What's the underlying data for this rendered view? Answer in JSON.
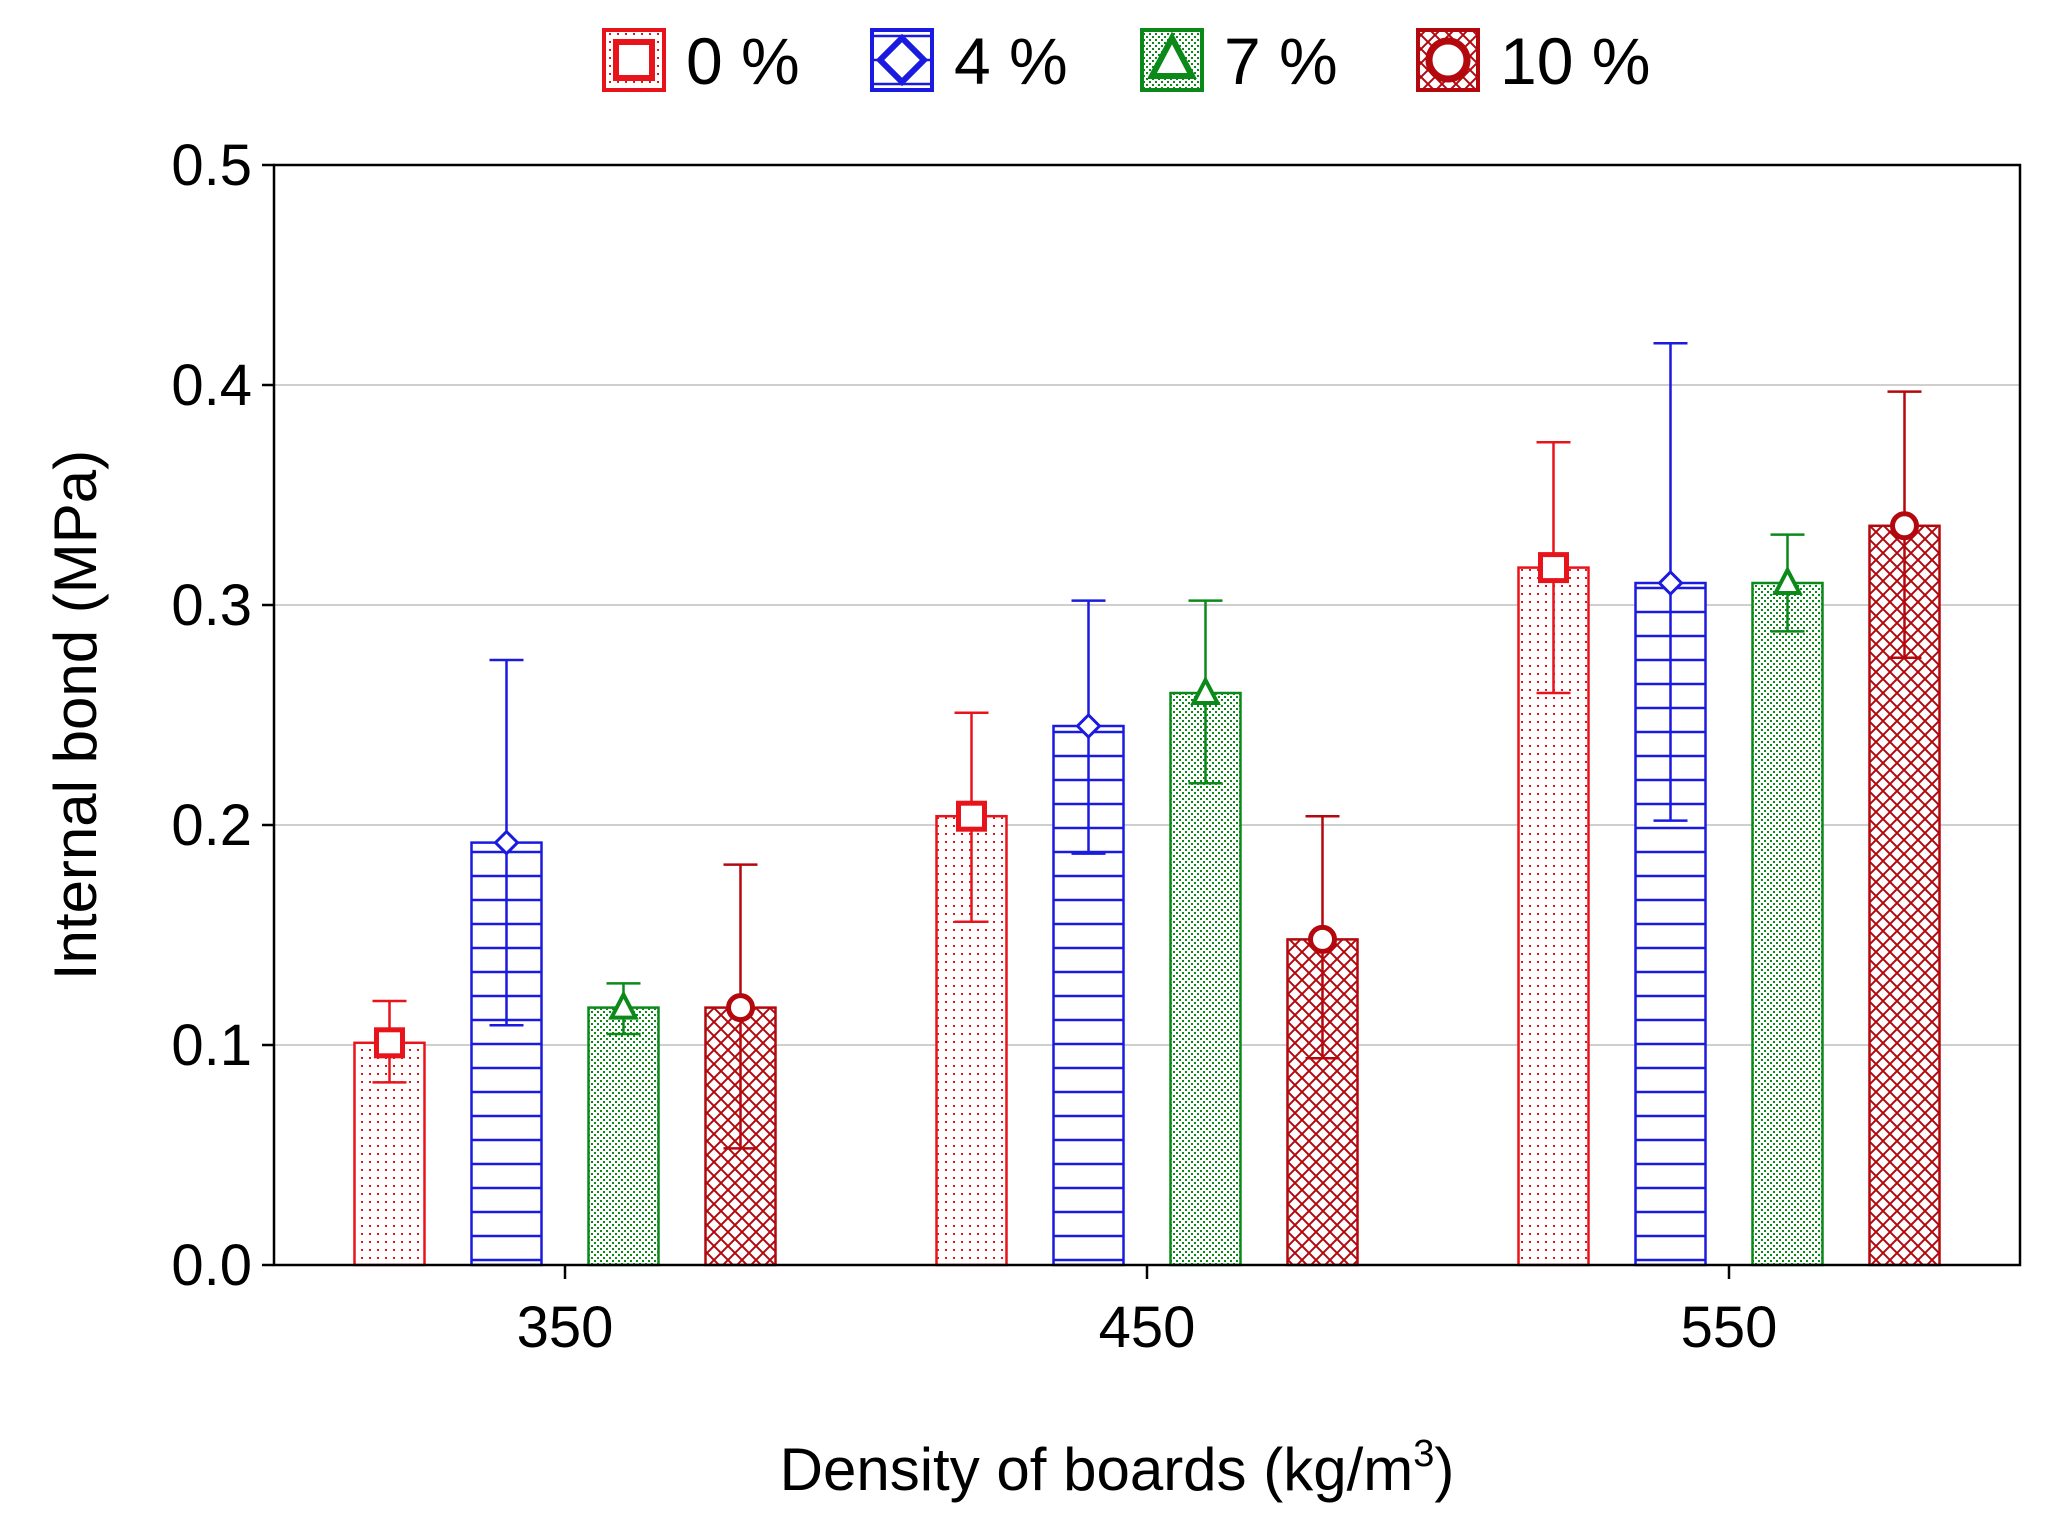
{
  "chart_data": {
    "type": "bar",
    "title": "",
    "xlabel": "Density of boards (kg/m",
    "xlabel_superscript": "3",
    "xlabel_suffix": ")",
    "ylabel": "Internal bond (MPa)",
    "ylim": [
      0,
      0.5
    ],
    "yticks": [
      "0.0",
      "0.1",
      "0.2",
      "0.3",
      "0.4",
      "0.5"
    ],
    "ytick_values": [
      0,
      0.1,
      0.2,
      0.3,
      0.4,
      0.5
    ],
    "grid": true,
    "legend_position": "top",
    "categories": [
      "350",
      "450",
      "550"
    ],
    "series": [
      {
        "name": "0 %",
        "color": "#e8141b",
        "pattern": "dots",
        "marker": "square",
        "values": [
          0.101,
          0.204,
          0.317
        ],
        "error_low": [
          0.083,
          0.156,
          0.26
        ],
        "error_high": [
          0.12,
          0.251,
          0.374
        ]
      },
      {
        "name": "4 %",
        "color": "#1a1ae0",
        "pattern": "hlines",
        "marker": "diamond",
        "values": [
          0.192,
          0.245,
          0.31
        ],
        "error_low": [
          0.109,
          0.187,
          0.202
        ],
        "error_high": [
          0.275,
          0.302,
          0.419
        ]
      },
      {
        "name": "7 %",
        "color": "#0b8a1a",
        "pattern": "finedots",
        "marker": "triangle",
        "values": [
          0.117,
          0.26,
          0.31
        ],
        "error_low": [
          0.105,
          0.219,
          0.288
        ],
        "error_high": [
          0.128,
          0.302,
          0.332
        ]
      },
      {
        "name": "10 %",
        "color": "#b3080e",
        "pattern": "crosshatch",
        "marker": "circle",
        "values": [
          0.117,
          0.148,
          0.336
        ],
        "error_low": [
          0.053,
          0.094,
          0.276
        ],
        "error_high": [
          0.182,
          0.204,
          0.397
        ]
      }
    ]
  }
}
